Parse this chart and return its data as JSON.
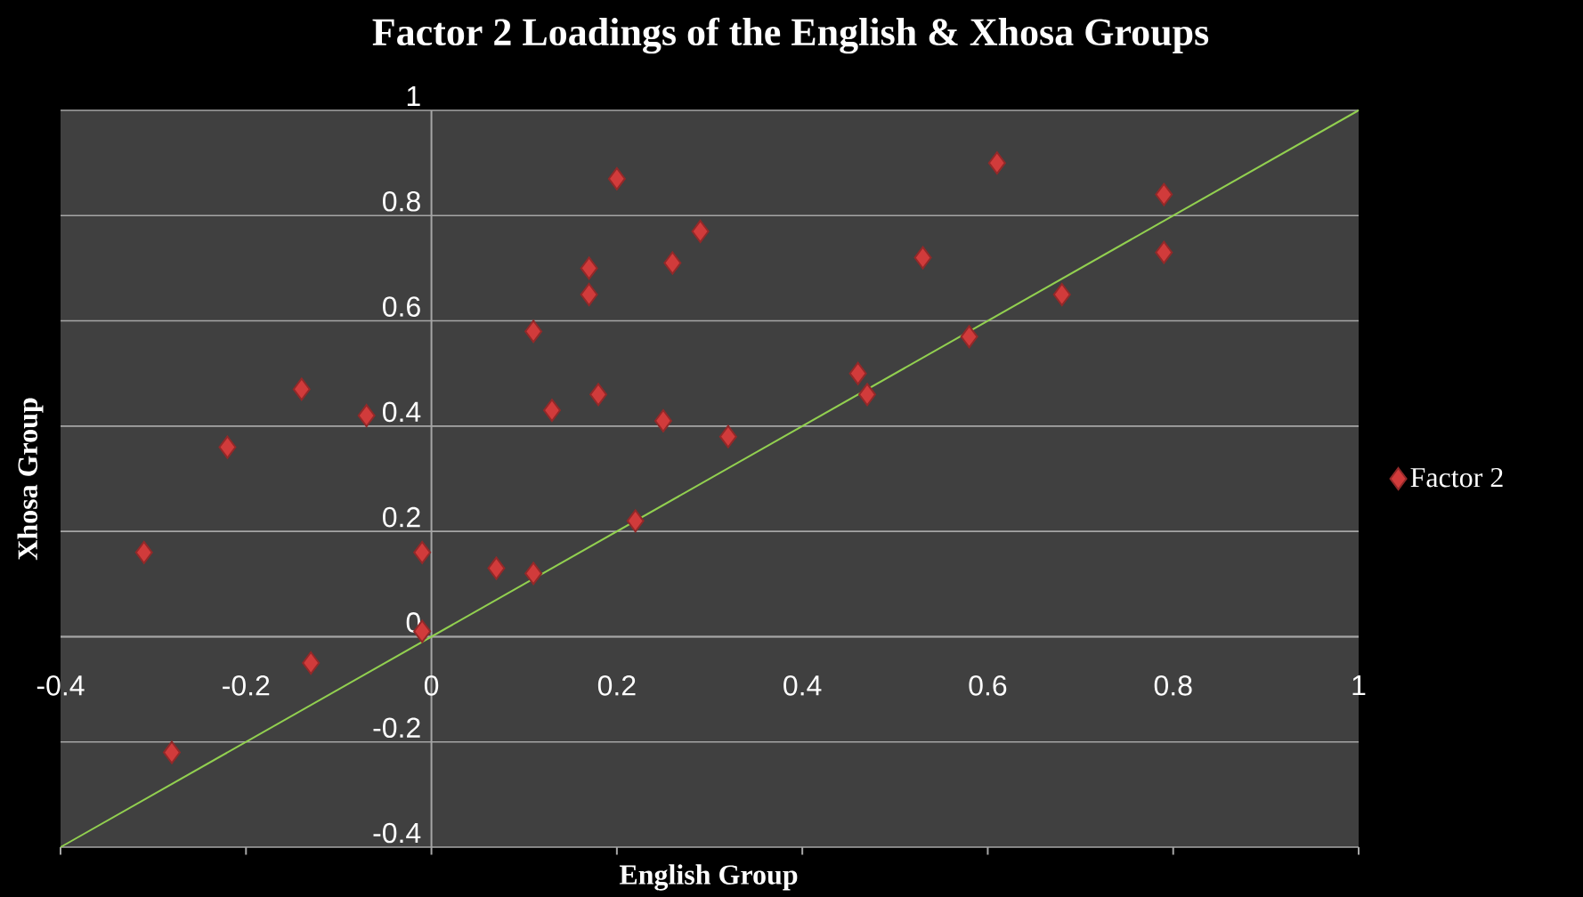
{
  "chart_data": {
    "type": "scatter",
    "title": "Factor 2 Loadings of the English & Xhosa Groups",
    "xlabel": "English Group",
    "ylabel": "Xhosa Group",
    "xlim": [
      -0.4,
      1
    ],
    "ylim": [
      -0.4,
      1
    ],
    "xticks": [
      -0.4,
      -0.2,
      0,
      0.2,
      0.4,
      0.6,
      0.8,
      1
    ],
    "yticks": [
      -0.4,
      -0.2,
      0,
      0.2,
      0.4,
      0.6,
      0.8,
      1
    ],
    "grid": "y",
    "legend": "right",
    "series": [
      {
        "name": "Factor 2",
        "type": "scatter",
        "marker": "diamond",
        "color": "#d13b3b",
        "x": [
          -0.31,
          -0.28,
          -0.22,
          -0.14,
          -0.13,
          -0.07,
          -0.01,
          -0.01,
          0.07,
          0.11,
          0.11,
          0.13,
          0.17,
          0.17,
          0.18,
          0.2,
          0.22,
          0.25,
          0.26,
          0.29,
          0.32,
          0.46,
          0.47,
          0.53,
          0.58,
          0.61,
          0.68,
          0.79,
          0.79
        ],
        "values": [
          0.16,
          -0.22,
          0.36,
          0.47,
          -0.05,
          0.42,
          0.16,
          0.01,
          0.13,
          0.12,
          0.58,
          0.43,
          0.7,
          0.65,
          0.46,
          0.87,
          0.22,
          0.41,
          0.71,
          0.77,
          0.38,
          0.5,
          0.46,
          0.72,
          0.57,
          0.9,
          0.65,
          0.84,
          0.73
        ]
      },
      {
        "type": "line",
        "marker": "none",
        "color": "#92d050",
        "x": [
          -0.4,
          1
        ],
        "values": [
          -0.4,
          1
        ]
      }
    ]
  }
}
